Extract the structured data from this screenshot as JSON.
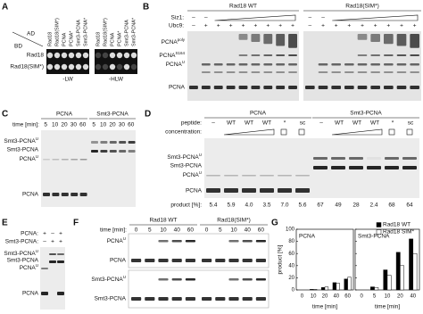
{
  "panels": {
    "A": {
      "letter": "A",
      "ad": "AD",
      "bd": "BD",
      "columns": [
        "Rad18",
        "Rad18(SIM*)",
        "PCNA",
        "PCNA*",
        "Smt3-PCNA",
        "Smt3-PCNA*"
      ],
      "rows": [
        "Rad18",
        "Rad18(SIM*)"
      ],
      "media": [
        "-LW",
        "-HLW"
      ]
    },
    "B": {
      "letter": "B",
      "gels": [
        "Rad18 WT",
        "Rad18(SIM*)"
      ],
      "siz1": "Siz1:",
      "ubc9": "Ubc9:",
      "siz1_signs": [
        "–",
        "–"
      ],
      "ubc9_signs": [
        "–",
        "+",
        "+",
        "+",
        "+",
        "+",
        "+",
        "+",
        "+"
      ],
      "bands": [
        {
          "base": "PCNA",
          "sup": "poly"
        },
        {
          "base": "PCNA",
          "sup": "S164"
        },
        {
          "base": "PCNA",
          "sup": "U"
        },
        "PCNA"
      ]
    },
    "C": {
      "letter": "C",
      "groups": [
        "PCNA",
        "Smt3-PCNA"
      ],
      "time_label": "time [min]:",
      "times": [
        5,
        10,
        20,
        30,
        60
      ],
      "bands": [
        {
          "base": "Smt3-PCNA",
          "sup": "U"
        },
        "Smt3-PCNA",
        {
          "base": "PCNA",
          "sup": "U"
        },
        "PCNA"
      ]
    },
    "D": {
      "letter": "D",
      "groups": [
        "PCNA",
        "Smt3-PCNA"
      ],
      "peptide_label": "peptide:",
      "concentration_label": "concentration:",
      "peptides": [
        "–",
        "WT",
        "WT",
        "WT",
        "*",
        "sc"
      ],
      "bands": [
        {
          "base": "Smt3-PCNA",
          "sup": "U"
        },
        "Smt3-PCNA",
        {
          "base": "PCNA",
          "sup": "U"
        },
        "PCNA"
      ],
      "product_label": "product [%]:",
      "products": [
        "5.4",
        "5.9",
        "4.0",
        "3.5",
        "7.0",
        "5.6",
        "67",
        "49",
        "28",
        "2.4",
        "68",
        "64"
      ]
    },
    "E": {
      "letter": "E",
      "rows": [
        {
          "label": "PCNA:",
          "signs": [
            "+",
            "–",
            "+"
          ]
        },
        {
          "label": "Smt3-PCNA:",
          "signs": [
            "–",
            "+",
            "+"
          ]
        }
      ],
      "bands": [
        {
          "base": "Smt3-PCNA",
          "sup": "U"
        },
        "Smt3-PCNA",
        {
          "base": "PCNA",
          "sup": "U"
        },
        "PCNA"
      ]
    },
    "F": {
      "letter": "F",
      "gels": [
        "Rad18 WT",
        "Rad18(SIM*)"
      ],
      "time_label": "time [min]:",
      "times": [
        0,
        5,
        10,
        40,
        60
      ],
      "bands_top": [
        {
          "base": "PCNA",
          "sup": "U"
        },
        "PCNA"
      ],
      "bands_bottom": [
        {
          "base": "Smt3-PCNA",
          "sup": "U"
        },
        "Smt3-PCNA"
      ]
    },
    "G": {
      "letter": "G"
    }
  },
  "chart_data": [
    {
      "type": "bar",
      "title": "PCNA",
      "xlabel": "time [min]",
      "ylabel": "product [%]",
      "categories": [
        0,
        10,
        20,
        40,
        60
      ],
      "series": [
        {
          "color": "#000000",
          "values": [
            0,
            1,
            4,
            12,
            18
          ]
        },
        {
          "color": "#ffffff",
          "values": [
            0,
            1,
            5,
            11,
            21
          ]
        }
      ],
      "ylim": [
        0,
        100
      ],
      "yticks": [
        0,
        20,
        40,
        60,
        80,
        100
      ]
    },
    {
      "type": "bar",
      "title": "Smt3-PCNA",
      "xlabel": "time [min]",
      "categories": [
        0,
        5,
        10,
        20,
        40
      ],
      "series": [
        {
          "name": "Rad18 WT",
          "color": "#000000",
          "values": [
            0,
            5,
            33,
            62,
            84
          ]
        },
        {
          "name": "Rad18 SIM*",
          "color": "#ffffff",
          "values": [
            0,
            4,
            24,
            40,
            60
          ]
        }
      ],
      "ylim": [
        0,
        100
      ],
      "yticks": [
        0,
        20,
        40,
        60,
        80,
        100
      ],
      "legend": "upper right"
    }
  ]
}
